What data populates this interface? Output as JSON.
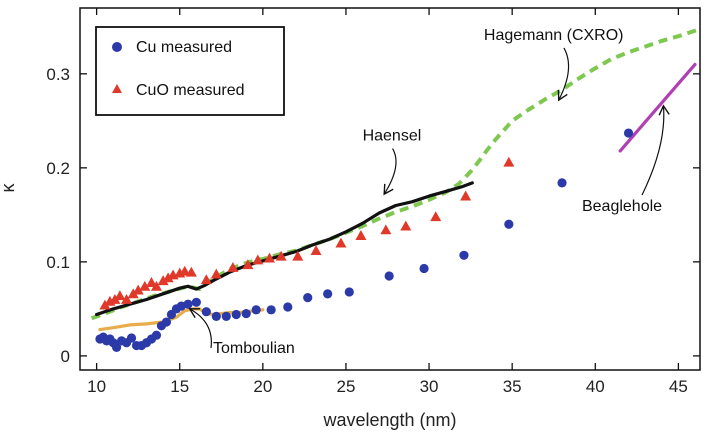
{
  "chart_data": {
    "type": "scatter",
    "xlabel": "wavelength (nm)",
    "ylabel": "κ",
    "xlim": [
      9,
      46.3
    ],
    "ylim": [
      -0.015,
      0.37
    ],
    "x_ticks": [
      10,
      15,
      20,
      25,
      30,
      35,
      40,
      45
    ],
    "y_ticks": [
      0,
      0.1,
      0.2,
      0.3
    ],
    "y_tick_labels": [
      "0",
      "0.1",
      "0.2",
      "0.3"
    ],
    "grid": false,
    "legend": {
      "placement": "top-left",
      "entries": [
        {
          "label": "Cu measured",
          "marker": "circle",
          "color": "#2b3aa8"
        },
        {
          "label": "CuO measured",
          "marker": "triangle",
          "color": "#e0392a"
        }
      ]
    },
    "series": [
      {
        "name": "Cu measured",
        "kind": "points",
        "marker": "circle",
        "color": "#2b3aa8",
        "x": [
          10.2,
          10.4,
          10.6,
          10.8,
          11.0,
          11.2,
          11.5,
          11.8,
          12.1,
          12.4,
          12.7,
          13.0,
          13.3,
          13.6,
          13.9,
          14.2,
          14.5,
          14.8,
          15.1,
          15.5,
          16.0,
          16.6,
          17.2,
          17.8,
          18.4,
          19.0,
          19.6,
          20.5,
          21.5,
          22.7,
          23.9,
          25.2,
          27.6,
          29.7,
          32.1,
          34.8,
          38.0,
          42.0
        ],
        "y": [
          0.018,
          0.02,
          0.016,
          0.018,
          0.014,
          0.009,
          0.016,
          0.014,
          0.019,
          0.011,
          0.011,
          0.014,
          0.018,
          0.022,
          0.032,
          0.036,
          0.044,
          0.05,
          0.053,
          0.055,
          0.057,
          0.047,
          0.042,
          0.042,
          0.044,
          0.045,
          0.049,
          0.049,
          0.052,
          0.062,
          0.066,
          0.068,
          0.085,
          0.093,
          0.107,
          0.14,
          0.184,
          0.237
        ]
      },
      {
        "name": "CuO measured",
        "kind": "points",
        "marker": "triangle",
        "color": "#e0392a",
        "x": [
          10.5,
          10.8,
          11.1,
          11.4,
          11.8,
          12.2,
          12.5,
          12.9,
          13.3,
          13.6,
          14.0,
          14.3,
          14.6,
          15.0,
          15.3,
          15.7,
          16.6,
          17.2,
          18.2,
          19.1,
          19.7,
          20.4,
          21.1,
          22.1,
          23.2,
          24.7,
          25.9,
          27.4,
          28.6,
          30.4,
          32.2,
          34.8
        ],
        "y": [
          0.054,
          0.058,
          0.06,
          0.064,
          0.06,
          0.066,
          0.07,
          0.074,
          0.078,
          0.074,
          0.08,
          0.083,
          0.086,
          0.088,
          0.09,
          0.089,
          0.081,
          0.087,
          0.094,
          0.097,
          0.102,
          0.104,
          0.106,
          0.106,
          0.112,
          0.12,
          0.128,
          0.134,
          0.138,
          0.148,
          0.17,
          0.206
        ]
      },
      {
        "name": "Hagemann (CXRO)",
        "kind": "line",
        "style": "dashed",
        "color": "#7ec850",
        "x": [
          9.7,
          10.5,
          11.5,
          12.5,
          13.5,
          14.5,
          15.5,
          16.2,
          17.0,
          18.0,
          19.0,
          20.0,
          21.0,
          22.0,
          23.0,
          24.0,
          25.0,
          26.0,
          27.0,
          28.0,
          29.0,
          30.0,
          31.0,
          31.8,
          32.5,
          33.0,
          33.5,
          34.0,
          34.5,
          35.0,
          36.0,
          37.0,
          38.0,
          39.0,
          40.0,
          41.0,
          42.0,
          43.0,
          44.0,
          45.0,
          46.2
        ],
        "y": [
          0.04,
          0.045,
          0.052,
          0.058,
          0.064,
          0.069,
          0.074,
          0.071,
          0.082,
          0.092,
          0.099,
          0.103,
          0.108,
          0.112,
          0.118,
          0.124,
          0.131,
          0.138,
          0.146,
          0.153,
          0.159,
          0.166,
          0.174,
          0.183,
          0.196,
          0.207,
          0.219,
          0.23,
          0.24,
          0.25,
          0.262,
          0.273,
          0.283,
          0.295,
          0.306,
          0.316,
          0.323,
          0.329,
          0.335,
          0.34,
          0.347
        ]
      },
      {
        "name": "Haensel",
        "kind": "line",
        "style": "solid",
        "color": "#111111",
        "x": [
          10.0,
          11.0,
          12.0,
          13.0,
          14.0,
          15.0,
          15.5,
          16.0,
          16.5,
          17.0,
          18.0,
          19.0,
          20.0,
          21.0,
          22.0,
          23.0,
          24.0,
          25.0,
          26.0,
          27.0,
          28.0,
          29.0,
          30.0,
          31.0,
          32.0,
          32.6
        ],
        "y": [
          0.044,
          0.05,
          0.055,
          0.06,
          0.066,
          0.072,
          0.074,
          0.071,
          0.075,
          0.08,
          0.089,
          0.096,
          0.101,
          0.106,
          0.111,
          0.118,
          0.124,
          0.132,
          0.141,
          0.152,
          0.16,
          0.164,
          0.17,
          0.175,
          0.18,
          0.184
        ]
      },
      {
        "name": "Tomboulian",
        "kind": "line",
        "style": "solid",
        "color": "#e8ac4a",
        "x": [
          10.2,
          11.0,
          12.0,
          13.0,
          14.0,
          14.8,
          15.3,
          15.8,
          16.2,
          16.5,
          17.0,
          17.5,
          18.0,
          18.5,
          19.0,
          19.5,
          20.0
        ],
        "y": [
          0.028,
          0.03,
          0.033,
          0.034,
          0.036,
          0.041,
          0.048,
          0.05,
          0.05,
          0.046,
          0.044,
          0.045,
          0.046,
          0.046,
          0.047,
          0.048,
          0.049
        ]
      },
      {
        "name": "Beaglehole",
        "kind": "line",
        "style": "solid",
        "color": "#b03fb3",
        "x": [
          41.5,
          46.0
        ],
        "y": [
          0.218,
          0.31
        ]
      }
    ],
    "annotations": [
      {
        "text": "Hagemann (CXRO)",
        "x": 33.3,
        "y": 0.336,
        "arrow_to": [
          37.8,
          0.272
        ]
      },
      {
        "text": "Haensel",
        "x": 26.0,
        "y": 0.229,
        "arrow_to": [
          27.3,
          0.172
        ]
      },
      {
        "text": "Tomboulian",
        "x": 17.0,
        "y": 0.003,
        "arrow_to": [
          15.6,
          0.05
        ]
      },
      {
        "text": "Beaglehole",
        "x": 39.2,
        "y": 0.154,
        "arrow_to": [
          44.1,
          0.266
        ]
      }
    ]
  }
}
